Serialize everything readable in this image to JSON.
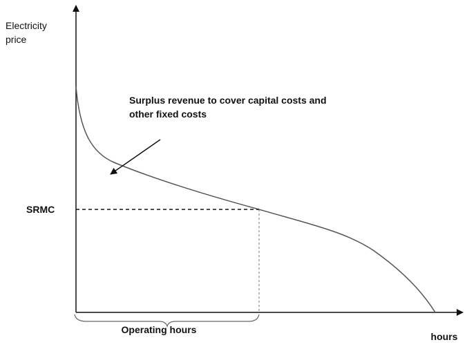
{
  "y_axis_label": [
    "Electricity",
    "price"
  ],
  "x_axis_label": "hours",
  "annotation": [
    "Surplus revenue to cover capital costs and",
    "other fixed costs"
  ],
  "level_label": "SRMC",
  "brace_label": "Operating hours"
}
